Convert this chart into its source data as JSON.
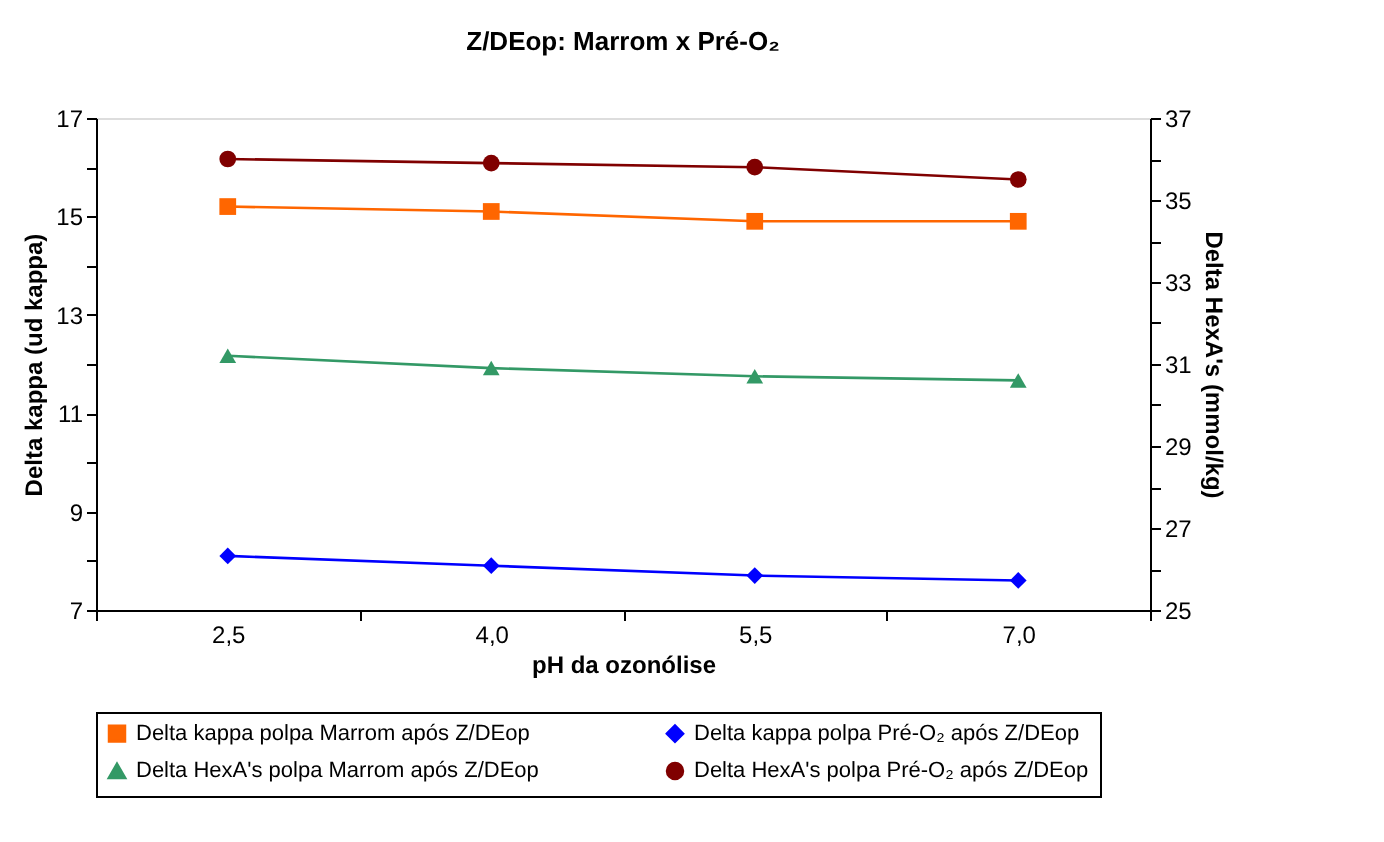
{
  "chart_data": {
    "type": "line",
    "title": "Z/DEop: Marrom x Pré-O₂",
    "xlabel": "pH da ozonólise",
    "ylabel": "Delta kappa (ud kappa)",
    "y2label": "Delta HexA's (mmol/kg)",
    "categories": [
      "2,5",
      "4,0",
      "5,5",
      "7,0"
    ],
    "series": [
      {
        "name": "Delta kappa polpa Marrom após Z/DEop",
        "color": "#ff6600",
        "marker": "square",
        "values": [
          15.2,
          15.1,
          14.9,
          14.9
        ]
      },
      {
        "name": "Delta kappa polpa Pré-O₂ após Z/DEop",
        "color": "#0000ff",
        "marker": "diamond",
        "values": [
          8.1,
          7.9,
          7.7,
          7.6
        ]
      },
      {
        "name": "Delta HexA's polpa Marrom após Z/DEop",
        "color": "#339966",
        "marker": "triangle",
        "axis": "y2",
        "values": [
          31.2,
          30.9,
          30.7,
          30.6
        ]
      },
      {
        "name": "Delta HexA's polpa Pré-O₂ após Z/DEop",
        "color": "#800000",
        "marker": "circle",
        "axis": "y2",
        "values": [
          36.0,
          35.9,
          35.8,
          35.5
        ]
      }
    ],
    "ylim": [
      7,
      17
    ],
    "yticks": [
      7,
      {
        "value": 8,
        "label": null
      },
      9,
      {
        "value": 10,
        "label": null
      },
      11,
      {
        "value": 12,
        "label": null
      },
      13,
      {
        "value": 14,
        "label": null
      },
      15,
      {
        "value": 16,
        "label": null
      },
      17
    ],
    "y2lim": [
      25,
      37
    ],
    "y2ticks": [
      25,
      {
        "value": 26,
        "label": null
      },
      27,
      {
        "value": 28,
        "label": null
      },
      29,
      {
        "value": 30,
        "label": null
      },
      31,
      {
        "value": 32,
        "label": null
      },
      33,
      {
        "value": 34,
        "label": null
      },
      35,
      {
        "value": 36,
        "label": null
      },
      37
    ],
    "grid": false,
    "legend": "bottom",
    "line_style": "solid"
  }
}
